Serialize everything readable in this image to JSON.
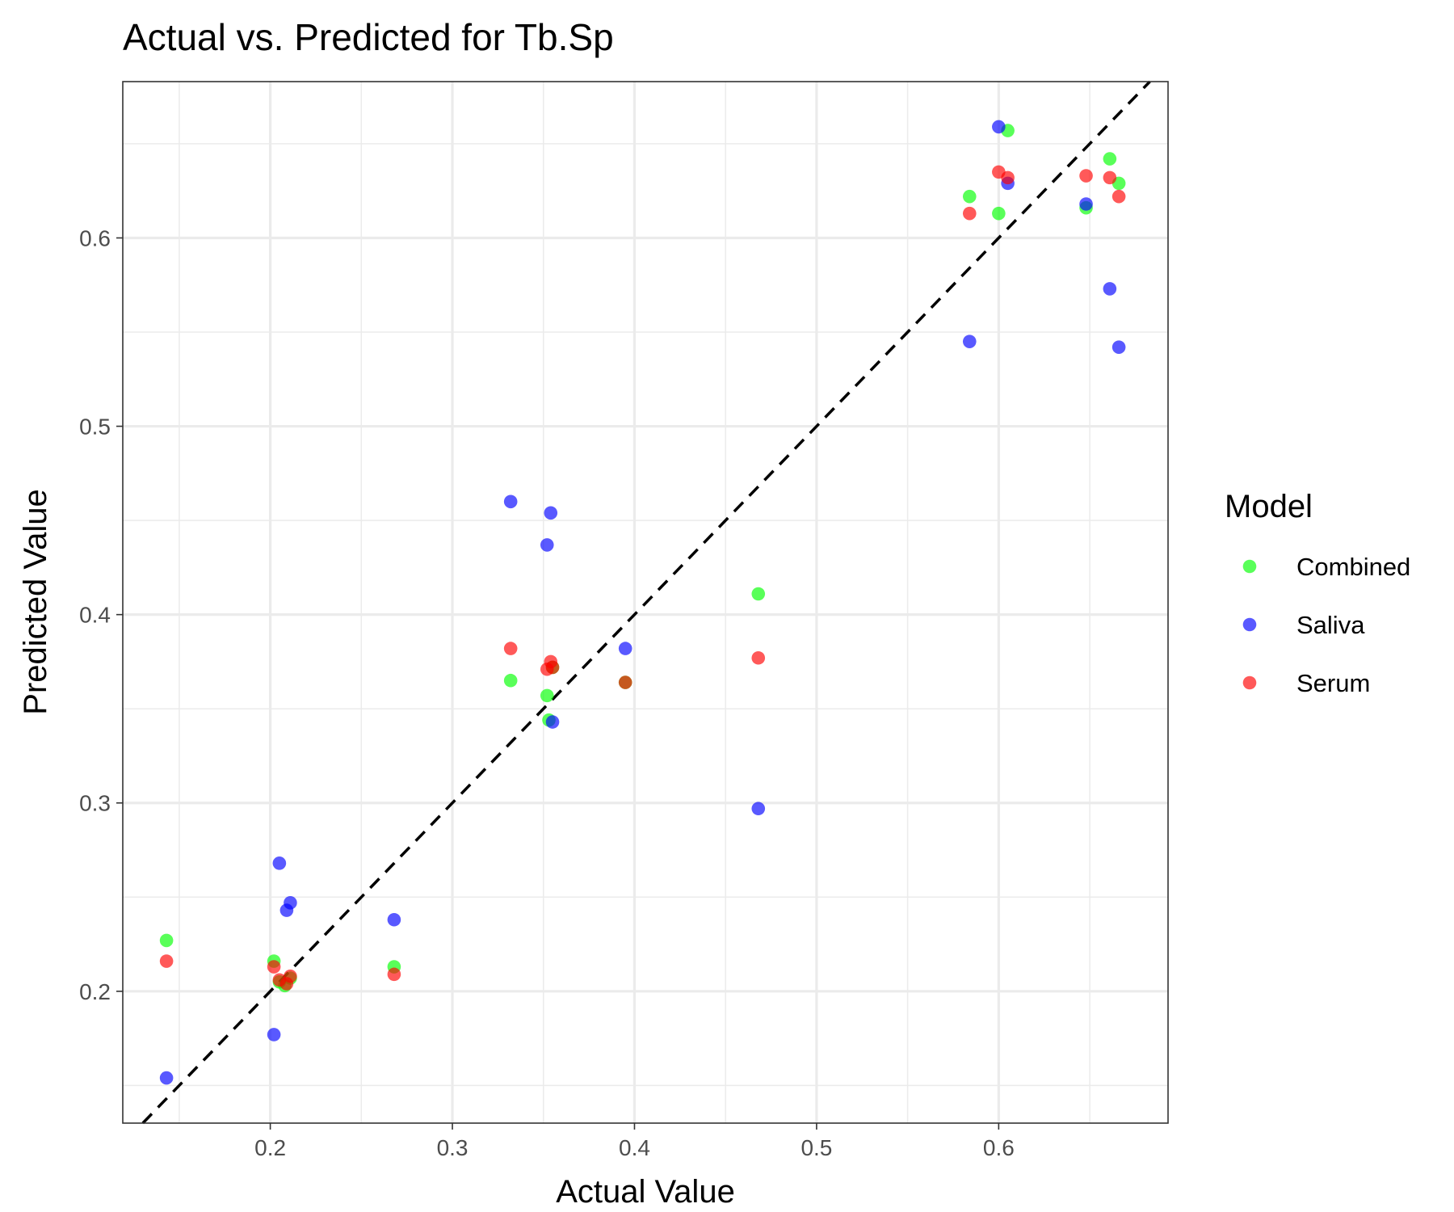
{
  "chart_data": {
    "type": "scatter",
    "title": "Actual vs. Predicted for Tb.Sp",
    "xlabel": "Actual Value",
    "ylabel": "Predicted Value",
    "xlim": [
      0.119,
      0.693
    ],
    "ylim": [
      0.13,
      0.683
    ],
    "x_ticks": [
      0.2,
      0.3,
      0.4,
      0.5,
      0.6
    ],
    "y_ticks": [
      0.2,
      0.3,
      0.4,
      0.5,
      0.6
    ],
    "x_tick_labels": [
      "0.2",
      "0.3",
      "0.4",
      "0.5",
      "0.6"
    ],
    "y_tick_labels": [
      "0.2",
      "0.3",
      "0.4",
      "0.5",
      "0.6"
    ],
    "x_minor": [
      0.15,
      0.25,
      0.35,
      0.45,
      0.55,
      0.65
    ],
    "y_minor": [
      0.15,
      0.25,
      0.35,
      0.45,
      0.55,
      0.65
    ],
    "grid": true,
    "reference_line": {
      "type": "identity",
      "style": "dashed",
      "color": "#000000"
    },
    "legend": {
      "title": "Model",
      "position": "right"
    },
    "point_alpha": 0.65,
    "series": [
      {
        "name": "Combined",
        "color": "#00ff00",
        "points": [
          [
            0.143,
            0.227
          ],
          [
            0.202,
            0.216
          ],
          [
            0.205,
            0.205
          ],
          [
            0.208,
            0.203
          ],
          [
            0.211,
            0.207
          ],
          [
            0.268,
            0.213
          ],
          [
            0.332,
            0.365
          ],
          [
            0.352,
            0.357
          ],
          [
            0.353,
            0.344
          ],
          [
            0.355,
            0.372
          ],
          [
            0.395,
            0.364
          ],
          [
            0.468,
            0.411
          ],
          [
            0.584,
            0.622
          ],
          [
            0.6,
            0.613
          ],
          [
            0.605,
            0.657
          ],
          [
            0.648,
            0.616
          ],
          [
            0.661,
            0.642
          ],
          [
            0.666,
            0.629
          ]
        ]
      },
      {
        "name": "Saliva",
        "color": "#0000ff",
        "points": [
          [
            0.143,
            0.154
          ],
          [
            0.202,
            0.177
          ],
          [
            0.205,
            0.268
          ],
          [
            0.209,
            0.243
          ],
          [
            0.211,
            0.247
          ],
          [
            0.268,
            0.238
          ],
          [
            0.332,
            0.46
          ],
          [
            0.352,
            0.437
          ],
          [
            0.354,
            0.454
          ],
          [
            0.355,
            0.343
          ],
          [
            0.395,
            0.382
          ],
          [
            0.468,
            0.297
          ],
          [
            0.584,
            0.545
          ],
          [
            0.6,
            0.659
          ],
          [
            0.605,
            0.629
          ],
          [
            0.648,
            0.618
          ],
          [
            0.661,
            0.573
          ],
          [
            0.666,
            0.542
          ]
        ]
      },
      {
        "name": "Serum",
        "color": "#ff0000",
        "points": [
          [
            0.143,
            0.216
          ],
          [
            0.202,
            0.213
          ],
          [
            0.205,
            0.206
          ],
          [
            0.209,
            0.204
          ],
          [
            0.211,
            0.208
          ],
          [
            0.268,
            0.209
          ],
          [
            0.332,
            0.382
          ],
          [
            0.352,
            0.371
          ],
          [
            0.354,
            0.375
          ],
          [
            0.355,
            0.372
          ],
          [
            0.395,
            0.364
          ],
          [
            0.468,
            0.377
          ],
          [
            0.584,
            0.613
          ],
          [
            0.6,
            0.635
          ],
          [
            0.605,
            0.632
          ],
          [
            0.648,
            0.633
          ],
          [
            0.661,
            0.632
          ],
          [
            0.666,
            0.622
          ]
        ]
      }
    ]
  }
}
